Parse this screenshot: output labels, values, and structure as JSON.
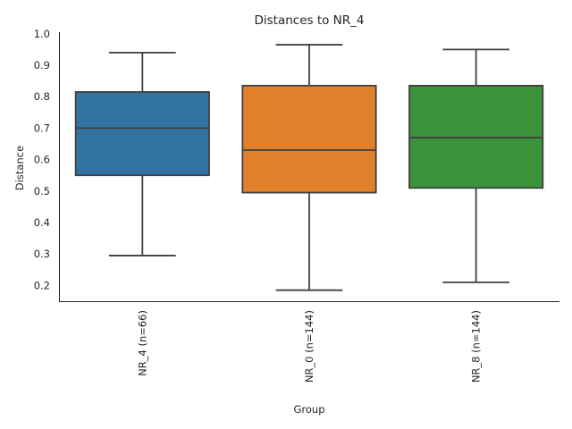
{
  "chart_data": {
    "type": "box",
    "title": "Distances to NR_4",
    "xlabel": "Group",
    "ylabel": "Distance",
    "ylim": [
      0.15,
      1.005
    ],
    "yticks": [
      0.2,
      0.3,
      0.4,
      0.5,
      0.6,
      0.7,
      0.8,
      0.9,
      1.0
    ],
    "ytick_labels": [
      "0.2",
      "0.3",
      "0.4",
      "0.5",
      "0.6",
      "0.7",
      "0.8",
      "0.9",
      "1.0"
    ],
    "categories": [
      "NR_4 (n=66)",
      "NR_0 (n=144)",
      "NR_8 (n=144)"
    ],
    "boxes": [
      {
        "category": "NR_4 (n=66)",
        "whisker_low": 0.295,
        "q1": 0.55,
        "median": 0.7,
        "q3": 0.815,
        "whisker_high": 0.94,
        "color": "#3274a1"
      },
      {
        "category": "NR_0 (n=144)",
        "whisker_low": 0.185,
        "q1": 0.495,
        "median": 0.63,
        "q3": 0.835,
        "whisker_high": 0.965,
        "color": "#e1812c"
      },
      {
        "category": "NR_8 (n=144)",
        "whisker_low": 0.21,
        "q1": 0.51,
        "median": 0.67,
        "q3": 0.835,
        "whisker_high": 0.95,
        "color": "#3a923a"
      }
    ],
    "grid": false,
    "legend": "none"
  }
}
